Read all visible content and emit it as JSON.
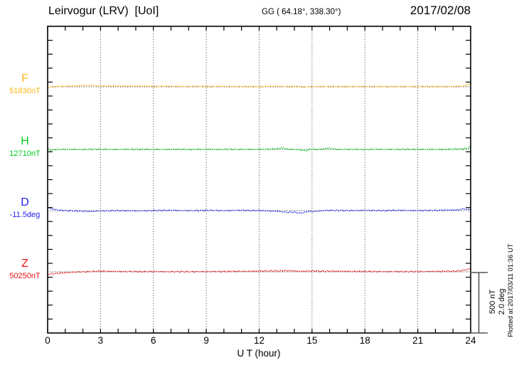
{
  "header": {
    "title": "Leirvogur (LRV)  [UoI]",
    "coords": "GG ( 64.18°, 338.30°)",
    "date": "2017/02/08"
  },
  "axis": {
    "x_ticks": [
      "0",
      "3",
      "6",
      "9",
      "12",
      "15",
      "18",
      "21",
      "24"
    ],
    "x_label": "U T (hour)"
  },
  "side": {
    "scale_label_nt": "500 nT",
    "scale_label_deg": "2.0 deg",
    "plotted_at": "Plotted at 2017/03/11 01:36 UT"
  },
  "chart_data": {
    "type": "line",
    "title": "Leirvogur (LRV) [UoI] magnetogram",
    "date": "2017/02/08",
    "xlabel": "U T (hour)",
    "x_range": [
      0,
      24
    ],
    "x_major_ticks": [
      0,
      3,
      6,
      9,
      12,
      15,
      18,
      21,
      24
    ],
    "grid": "vertical dotted lines every 3 hours; dotted black baseline per trace",
    "legend_position": "left margin labels",
    "scale_bar": {
      "nT": 500,
      "deg": 2.0
    },
    "series": [
      {
        "name": "F",
        "label": "F",
        "value_label": "51830nT",
        "baseline_value": 51830,
        "unit": "nT",
        "color": "#fdb515",
        "points": [
          [
            0,
            -8
          ],
          [
            0.2,
            0
          ],
          [
            0.5,
            2
          ],
          [
            1,
            5
          ],
          [
            1.5,
            8
          ],
          [
            2,
            11
          ],
          [
            2.5,
            12
          ],
          [
            3,
            8
          ],
          [
            3.5,
            6
          ],
          [
            4,
            7
          ],
          [
            5,
            6
          ],
          [
            6,
            5
          ],
          [
            7,
            4
          ],
          [
            8,
            3
          ],
          [
            9,
            4
          ],
          [
            10,
            3
          ],
          [
            11,
            3
          ],
          [
            12,
            2
          ],
          [
            13,
            5
          ],
          [
            13.5,
            3
          ],
          [
            14,
            4
          ],
          [
            14.6,
            -3
          ],
          [
            15,
            2
          ],
          [
            16,
            3
          ],
          [
            17,
            2
          ],
          [
            18,
            3
          ],
          [
            19,
            2
          ],
          [
            20,
            2
          ],
          [
            21,
            3
          ],
          [
            22,
            2
          ],
          [
            23,
            3
          ],
          [
            23.5,
            5
          ],
          [
            23.8,
            14
          ],
          [
            24,
            26
          ]
        ]
      },
      {
        "name": "H",
        "label": "H",
        "value_label": "12710nT",
        "baseline_value": 12710,
        "unit": "nT",
        "color": "#00cc22",
        "points": [
          [
            0,
            10
          ],
          [
            0.15,
            -6
          ],
          [
            0.4,
            -2
          ],
          [
            0.7,
            0
          ],
          [
            1,
            1
          ],
          [
            2,
            0
          ],
          [
            3,
            1
          ],
          [
            4,
            0
          ],
          [
            5,
            1
          ],
          [
            6,
            0
          ],
          [
            7,
            1
          ],
          [
            8,
            0
          ],
          [
            9,
            1
          ],
          [
            10,
            0
          ],
          [
            11,
            1
          ],
          [
            12,
            0
          ],
          [
            12.5,
            2
          ],
          [
            13,
            6
          ],
          [
            13.3,
            14
          ],
          [
            13.6,
            2
          ],
          [
            14,
            0
          ],
          [
            14.4,
            -6
          ],
          [
            14.7,
            -12
          ],
          [
            14.9,
            4
          ],
          [
            15.2,
            0
          ],
          [
            15.6,
            2
          ],
          [
            15.9,
            12
          ],
          [
            16.2,
            4
          ],
          [
            16.5,
            0
          ],
          [
            17,
            1
          ],
          [
            18,
            0
          ],
          [
            19,
            1
          ],
          [
            20,
            0
          ],
          [
            21,
            1
          ],
          [
            22,
            0
          ],
          [
            23,
            2
          ],
          [
            23.5,
            4
          ],
          [
            23.8,
            10
          ],
          [
            24,
            22
          ]
        ]
      },
      {
        "name": "D",
        "label": "D",
        "value_label": "-11.5deg",
        "baseline_value": -11.5,
        "unit": "deg",
        "color": "#2222ee",
        "points": [
          [
            0,
            0.1
          ],
          [
            0.3,
            0.05
          ],
          [
            0.6,
            0.02
          ],
          [
            1,
            0.0
          ],
          [
            1.5,
            -0.01
          ],
          [
            2,
            -0.02
          ],
          [
            2.5,
            -0.03
          ],
          [
            3,
            -0.01
          ],
          [
            4,
            0.0
          ],
          [
            5,
            -0.01
          ],
          [
            6,
            0.0
          ],
          [
            7,
            0.01
          ],
          [
            8,
            0.0
          ],
          [
            9,
            0.01
          ],
          [
            10,
            0.0
          ],
          [
            11,
            0.01
          ],
          [
            12,
            0.0
          ],
          [
            12.5,
            -0.01
          ],
          [
            13,
            -0.02
          ],
          [
            13.6,
            -0.06
          ],
          [
            14,
            -0.05
          ],
          [
            14.3,
            -0.08
          ],
          [
            14.6,
            -0.06
          ],
          [
            14.8,
            -0.02
          ],
          [
            15,
            -0.04
          ],
          [
            15.3,
            -0.02
          ],
          [
            15.6,
            0.0
          ],
          [
            16,
            0.01
          ],
          [
            17,
            0.0
          ],
          [
            18,
            0.01
          ],
          [
            19,
            0.0
          ],
          [
            20,
            0.01
          ],
          [
            21,
            0.0
          ],
          [
            22,
            0.01
          ],
          [
            23,
            0.02
          ],
          [
            23.4,
            0.03
          ],
          [
            23.6,
            0.07
          ],
          [
            23.8,
            0.03
          ],
          [
            24,
            0.05
          ]
        ]
      },
      {
        "name": "Z",
        "label": "Z",
        "value_label": "50250nT",
        "baseline_value": 50250,
        "unit": "nT",
        "color": "#ee1111",
        "points": [
          [
            0,
            -20
          ],
          [
            0.3,
            -16
          ],
          [
            0.6,
            -12
          ],
          [
            1,
            -8
          ],
          [
            1.5,
            -3
          ],
          [
            2,
            0
          ],
          [
            2.5,
            3
          ],
          [
            3,
            6
          ],
          [
            3.5,
            4
          ],
          [
            4,
            3
          ],
          [
            5,
            2
          ],
          [
            6,
            2
          ],
          [
            7,
            1
          ],
          [
            8,
            1
          ],
          [
            9,
            2
          ],
          [
            10,
            3
          ],
          [
            11,
            4
          ],
          [
            12,
            6
          ],
          [
            13,
            8
          ],
          [
            13.5,
            9
          ],
          [
            14,
            8
          ],
          [
            14.3,
            4
          ],
          [
            14.6,
            6
          ],
          [
            15,
            7
          ],
          [
            15.5,
            5
          ],
          [
            16,
            6
          ],
          [
            17,
            4
          ],
          [
            18,
            3
          ],
          [
            19,
            2
          ],
          [
            20,
            2
          ],
          [
            21,
            2
          ],
          [
            22,
            3
          ],
          [
            23,
            5
          ],
          [
            23.3,
            8
          ],
          [
            23.6,
            13
          ],
          [
            24,
            24
          ]
        ]
      }
    ]
  }
}
